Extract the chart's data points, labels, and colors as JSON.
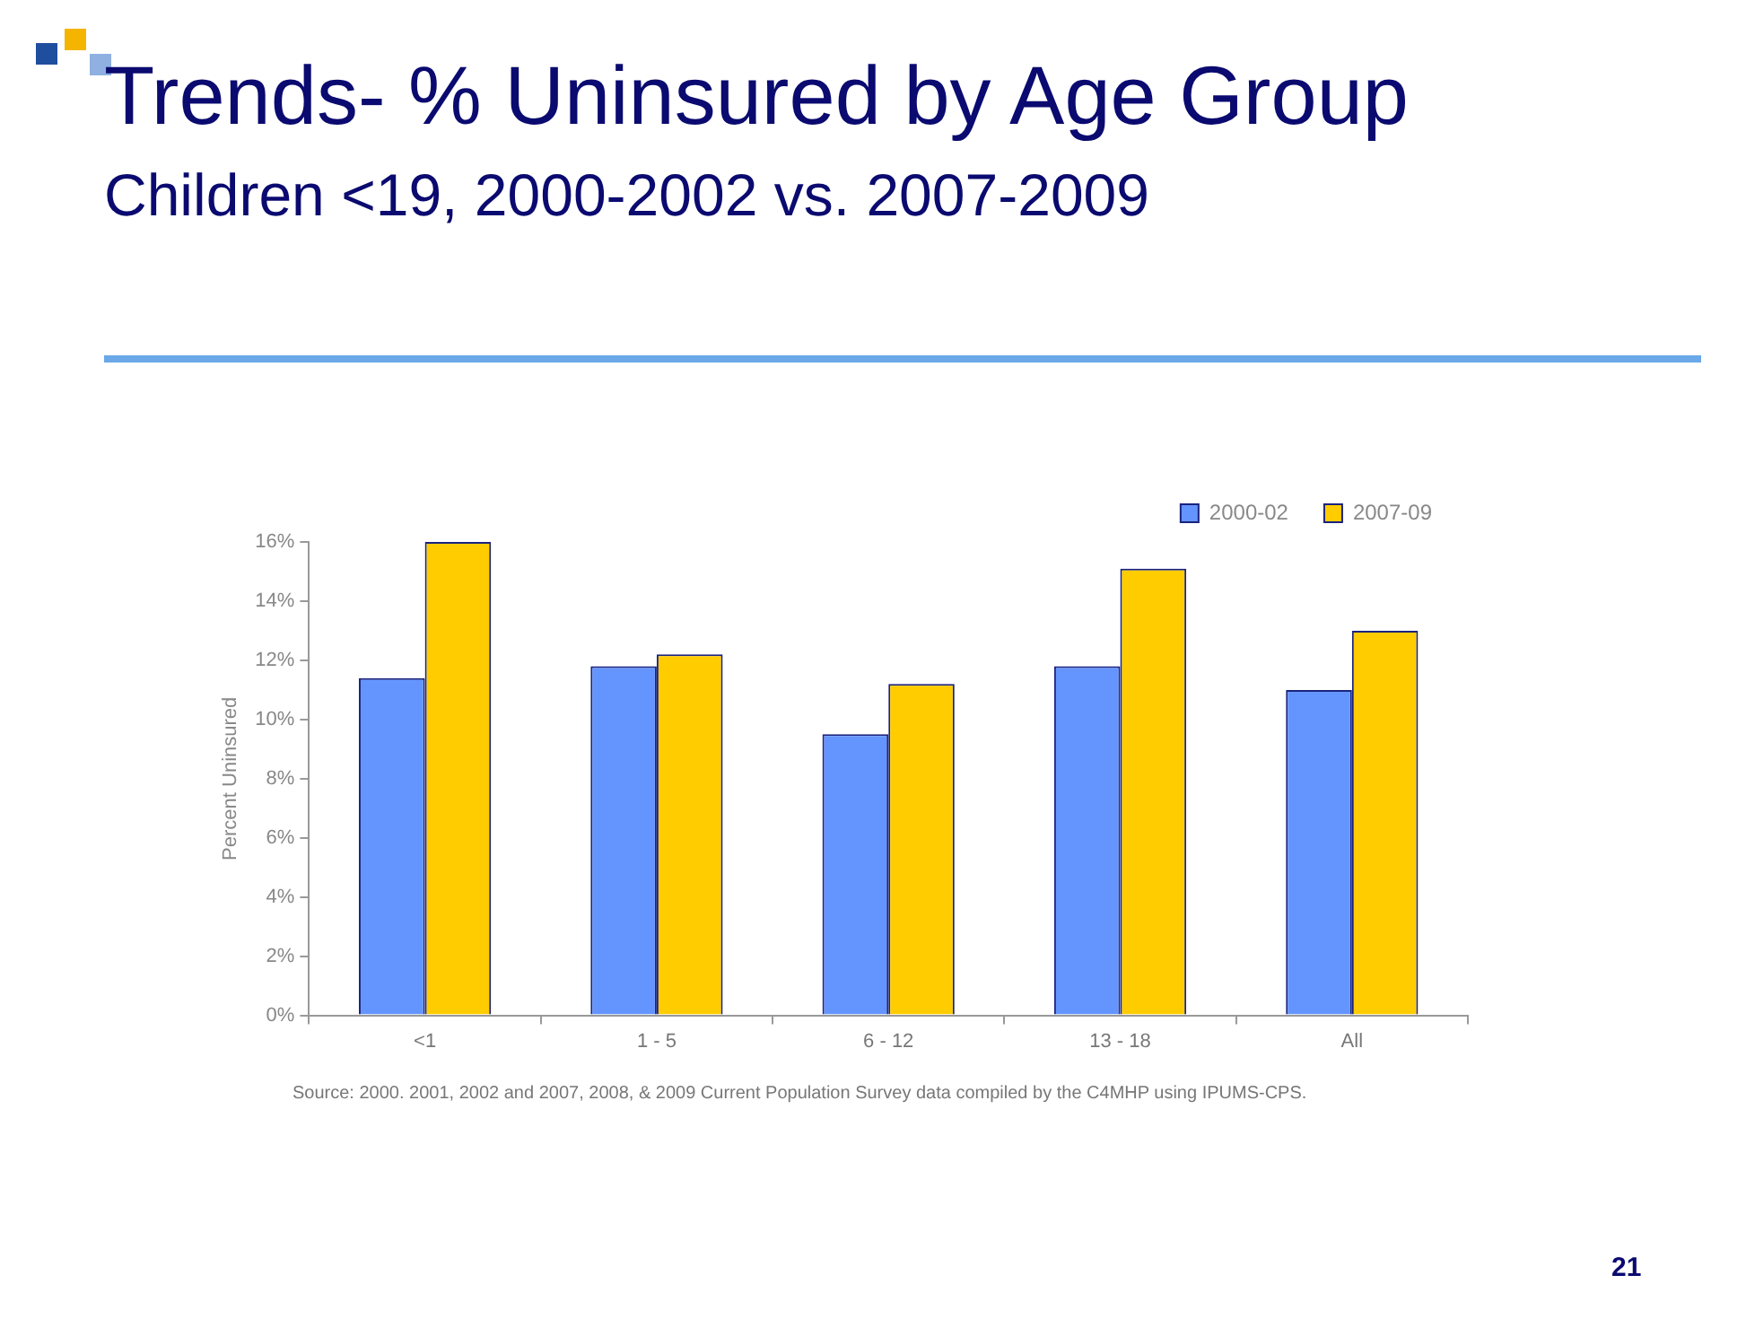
{
  "chart_data": {
    "type": "bar",
    "title": "Trends- % Uninsured by Age Group",
    "subtitle": "Children <19, 2000-2002 vs. 2007-2009",
    "ylabel": "Percent Uninsured",
    "categories": [
      "<1",
      "1 - 5",
      "6 - 12",
      "13 - 18",
      "All"
    ],
    "series": [
      {
        "name": "2000-02",
        "color": "#6495ff",
        "values": [
          11.4,
          11.8,
          9.5,
          11.8,
          11.0
        ]
      },
      {
        "name": "2007-09",
        "color": "#ffcc00",
        "values": [
          16.0,
          12.2,
          11.2,
          15.1,
          13.0
        ]
      }
    ],
    "ylim": [
      0,
      16
    ],
    "yticks": [
      {
        "value": 0,
        "label": "0%"
      },
      {
        "value": 2,
        "label": "2%"
      },
      {
        "value": 4,
        "label": "4%"
      },
      {
        "value": 6,
        "label": "6%"
      },
      {
        "value": 8,
        "label": "8%"
      },
      {
        "value": 10,
        "label": "10%"
      },
      {
        "value": 12,
        "label": "12%"
      },
      {
        "value": 14,
        "label": "14%"
      },
      {
        "value": 16,
        "label": "16%"
      }
    ],
    "legend": "top right",
    "annotations": [
      "Source:  2000. 2001, 2002 and 2007, 2008, & 2009 Current Population Survey data compiled by the C4MHP using IPUMS-CPS.",
      "21"
    ]
  }
}
